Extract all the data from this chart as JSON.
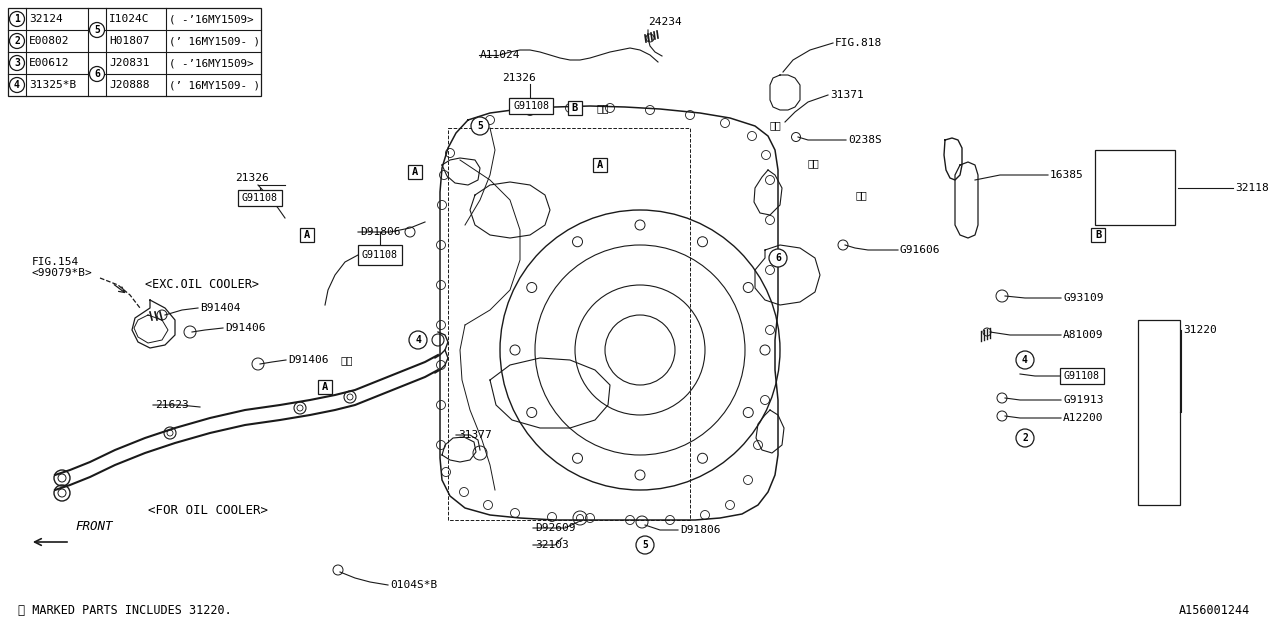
{
  "bg_color": "#ffffff",
  "line_color": "#1a1a1a",
  "diagram_id": "A156001244",
  "fig_width": 12.8,
  "fig_height": 6.4,
  "dpi": 100,
  "legend_rows": [
    [
      "1",
      "32124",
      "5",
      "I1024C",
      "( -’16MY1509>"
    ],
    [
      "2",
      "E00802",
      "",
      "H01807",
      "(’ 16MY1509- )"
    ],
    [
      "3",
      "E00612",
      "6",
      "J20831",
      "( -’16MY1509>"
    ],
    [
      "4",
      "31325*B",
      "",
      "J20888",
      "(’ 16MY1509- )"
    ]
  ],
  "bottom_note": "※ MARKED PARTS INCLUDES 31220.",
  "front_label": "FRONT"
}
